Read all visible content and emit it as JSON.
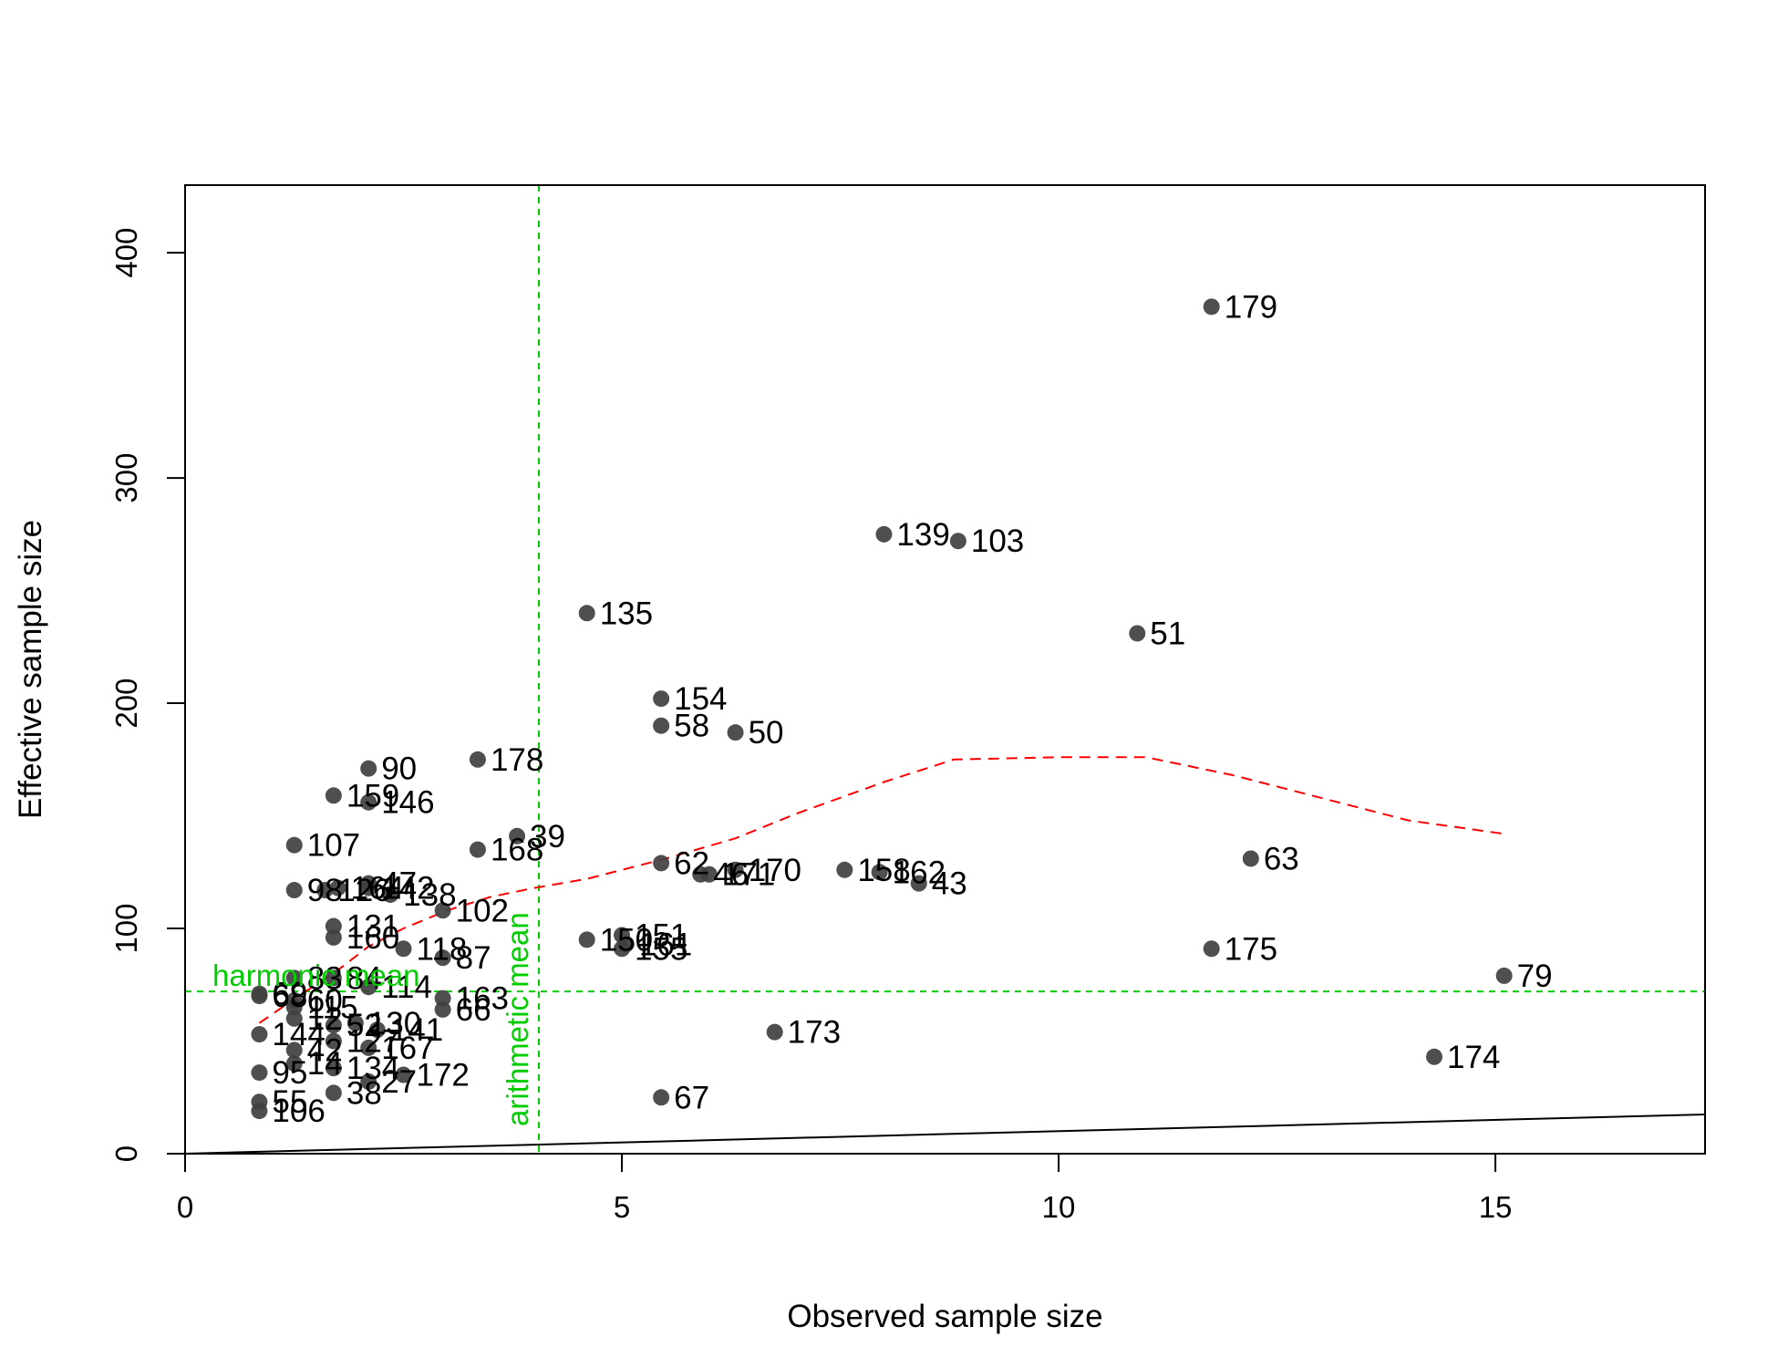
{
  "chart_data": {
    "type": "scatter",
    "title": "",
    "xlabel": "Observed sample size",
    "ylabel": "Effective sample size",
    "xlim": [
      0,
      17.4
    ],
    "ylim": [
      0,
      430
    ],
    "xticks": [
      0,
      5,
      10,
      15
    ],
    "yticks": [
      0,
      100,
      200,
      300,
      400
    ],
    "grid": false,
    "colors": {
      "points": "#404040",
      "smooth": "#ff0000",
      "reference": "#00cc00",
      "identity": "#000000"
    },
    "reference_lines": {
      "harmonic_mean": {
        "label": "harmonic mean",
        "y": 72
      },
      "arithmetic_mean": {
        "label": "arithmetic mean",
        "x": 4.05
      }
    },
    "identity_line": {
      "label": "",
      "slope": 1
    },
    "smooth_curve": {
      "x": [
        0.85,
        1.3,
        1.7,
        2.1,
        2.5,
        3.0,
        3.5,
        4.0,
        4.6,
        5.5,
        6.3,
        7.0,
        8.0,
        8.8,
        10.0,
        11.0,
        12.0,
        13.0,
        14.0,
        15.1
      ],
      "y": [
        58,
        70,
        80,
        92,
        100,
        108,
        114,
        118,
        122,
        131,
        140,
        151,
        165,
        175,
        176,
        176,
        168,
        158,
        148,
        142
      ]
    },
    "points": [
      {
        "label": "179",
        "x": 11.75,
        "y": 376
      },
      {
        "label": "139",
        "x": 8.0,
        "y": 275
      },
      {
        "label": "103",
        "x": 8.85,
        "y": 272
      },
      {
        "label": "135",
        "x": 4.6,
        "y": 240
      },
      {
        "label": "51",
        "x": 10.9,
        "y": 231
      },
      {
        "label": "154",
        "x": 5.45,
        "y": 202
      },
      {
        "label": "58",
        "x": 5.45,
        "y": 190
      },
      {
        "label": "50",
        "x": 6.3,
        "y": 187
      },
      {
        "label": "178",
        "x": 3.35,
        "y": 175
      },
      {
        "label": "90",
        "x": 2.1,
        "y": 171
      },
      {
        "label": "159",
        "x": 1.7,
        "y": 159
      },
      {
        "label": "146",
        "x": 2.1,
        "y": 156
      },
      {
        "label": "39",
        "x": 3.8,
        "y": 141
      },
      {
        "label": "107",
        "x": 1.25,
        "y": 137
      },
      {
        "label": "168",
        "x": 3.35,
        "y": 135
      },
      {
        "label": "63",
        "x": 12.2,
        "y": 131
      },
      {
        "label": "62",
        "x": 5.45,
        "y": 129
      },
      {
        "label": "170",
        "x": 6.3,
        "y": 126
      },
      {
        "label": "46",
        "x": 5.9,
        "y": 124
      },
      {
        "label": "171",
        "x": 6.0,
        "y": 124
      },
      {
        "label": "158",
        "x": 7.55,
        "y": 126
      },
      {
        "label": "162",
        "x": 7.95,
        "y": 125
      },
      {
        "label": "43",
        "x": 8.4,
        "y": 120
      },
      {
        "label": "47",
        "x": 2.1,
        "y": 120
      },
      {
        "label": "98",
        "x": 1.25,
        "y": 117
      },
      {
        "label": "126",
        "x": 1.6,
        "y": 117
      },
      {
        "label": "164",
        "x": 1.75,
        "y": 118
      },
      {
        "label": "142",
        "x": 2.1,
        "y": 118
      },
      {
        "label": "138",
        "x": 2.35,
        "y": 115
      },
      {
        "label": "102",
        "x": 2.95,
        "y": 108
      },
      {
        "label": "131",
        "x": 1.7,
        "y": 101
      },
      {
        "label": "160",
        "x": 1.7,
        "y": 96
      },
      {
        "label": "150",
        "x": 4.6,
        "y": 95
      },
      {
        "label": "151",
        "x": 5.0,
        "y": 97
      },
      {
        "label": "161",
        "x": 5.05,
        "y": 93
      },
      {
        "label": "155",
        "x": 5.0,
        "y": 91
      },
      {
        "label": "175",
        "x": 11.75,
        "y": 91
      },
      {
        "label": "118",
        "x": 2.5,
        "y": 91
      },
      {
        "label": "87",
        "x": 2.95,
        "y": 87
      },
      {
        "label": "83",
        "x": 1.25,
        "y": 78
      },
      {
        "label": "84",
        "x": 1.7,
        "y": 78
      },
      {
        "label": "79",
        "x": 15.1,
        "y": 79
      },
      {
        "label": "114",
        "x": 2.1,
        "y": 74
      },
      {
        "label": "69",
        "x": 0.85,
        "y": 71
      },
      {
        "label": "68",
        "x": 0.85,
        "y": 70
      },
      {
        "label": "60",
        "x": 1.25,
        "y": 68
      },
      {
        "label": "163",
        "x": 2.95,
        "y": 69
      },
      {
        "label": "66",
        "x": 2.95,
        "y": 64
      },
      {
        "label": "115",
        "x": 1.25,
        "y": 65
      },
      {
        "label": "12",
        "x": 1.25,
        "y": 60
      },
      {
        "label": "52",
        "x": 1.7,
        "y": 57
      },
      {
        "label": "130",
        "x": 1.95,
        "y": 58
      },
      {
        "label": "141",
        "x": 2.2,
        "y": 55
      },
      {
        "label": "173",
        "x": 6.75,
        "y": 54
      },
      {
        "label": "144",
        "x": 0.85,
        "y": 53
      },
      {
        "label": "127",
        "x": 1.7,
        "y": 50
      },
      {
        "label": "167",
        "x": 2.1,
        "y": 47
      },
      {
        "label": "42",
        "x": 1.25,
        "y": 46
      },
      {
        "label": "174",
        "x": 14.3,
        "y": 43
      },
      {
        "label": "14",
        "x": 1.25,
        "y": 40
      },
      {
        "label": "134",
        "x": 1.7,
        "y": 38
      },
      {
        "label": "172",
        "x": 2.5,
        "y": 35
      },
      {
        "label": "95",
        "x": 0.85,
        "y": 36
      },
      {
        "label": "27",
        "x": 2.1,
        "y": 32
      },
      {
        "label": "38",
        "x": 1.7,
        "y": 27
      },
      {
        "label": "67",
        "x": 5.45,
        "y": 25
      },
      {
        "label": "55",
        "x": 0.85,
        "y": 23
      },
      {
        "label": "106",
        "x": 0.85,
        "y": 19
      }
    ]
  }
}
